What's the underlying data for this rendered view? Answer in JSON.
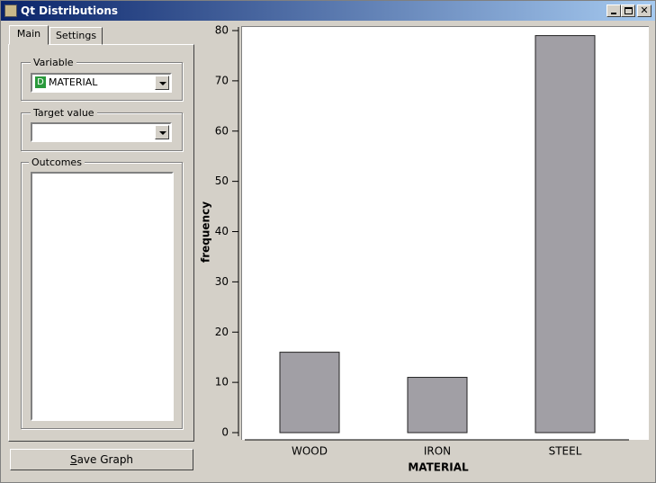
{
  "window": {
    "title": "Qt Distributions"
  },
  "tabs": [
    "Main",
    "Settings"
  ],
  "variable": {
    "label": "Variable",
    "badge": "D",
    "selected": "MATERIAL"
  },
  "target": {
    "label": "Target value"
  },
  "outcomes": {
    "label": "Outcomes"
  },
  "save_button": "Save Graph",
  "chart_data": {
    "type": "bar",
    "x_label": "MATERIAL",
    "y_label": "frequency",
    "categories": [
      "WOOD",
      "IRON",
      "STEEL"
    ],
    "values": [
      16,
      11,
      79
    ],
    "color": "#a19fa5",
    "ylim": [
      0,
      80
    ],
    "yticks": [
      0,
      10,
      20,
      30,
      40,
      50,
      60,
      70,
      80
    ]
  }
}
